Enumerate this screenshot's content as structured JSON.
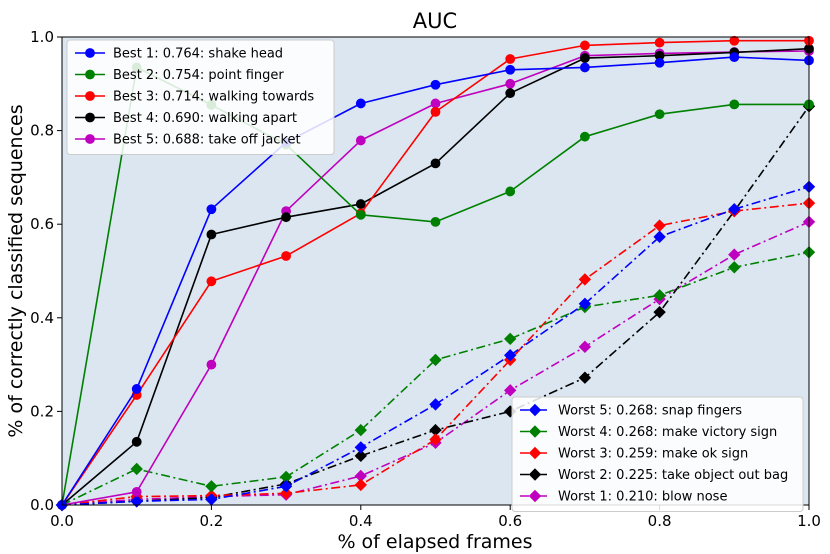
{
  "chart_data": {
    "type": "line",
    "title": "AUC",
    "xlabel": "% of elapsed frames",
    "ylabel": "% of correctly classified sequences",
    "xlim": [
      0.0,
      1.0
    ],
    "ylim": [
      0.0,
      1.0
    ],
    "x": [
      0.0,
      0.1,
      0.2,
      0.3,
      0.4,
      0.5,
      0.6,
      0.7,
      0.8,
      0.9,
      1.0
    ],
    "xticks": [
      "0.0",
      "0.2",
      "0.4",
      "0.6",
      "0.8",
      "1.0"
    ],
    "yticks": [
      "0.0",
      "0.2",
      "0.4",
      "0.6",
      "0.8",
      "1.0"
    ],
    "background": "#dbe6f1",
    "grid": false,
    "legends": [
      {
        "placement": "top-left",
        "group": "best"
      },
      {
        "placement": "bottom-right",
        "group": "worst"
      }
    ],
    "series": [
      {
        "name": "Best 1: 0.764: shake head",
        "group": "best",
        "color": "#0000ff",
        "linestyle": "solid",
        "marker": "circle",
        "values": [
          0.0,
          0.248,
          0.632,
          0.775,
          0.858,
          0.898,
          0.93,
          0.935,
          0.945,
          0.957,
          0.95
        ]
      },
      {
        "name": "Best 2: 0.754: point finger",
        "group": "best",
        "color": "#008000",
        "linestyle": "solid",
        "marker": "circle",
        "values": [
          0.0,
          0.935,
          0.855,
          0.77,
          0.62,
          0.605,
          0.67,
          0.787,
          0.835,
          0.856,
          0.856
        ]
      },
      {
        "name": "Best 3: 0.714: walking towards",
        "group": "best",
        "color": "#ff0000",
        "linestyle": "solid",
        "marker": "circle",
        "values": [
          0.0,
          0.235,
          0.478,
          0.532,
          0.623,
          0.84,
          0.953,
          0.982,
          0.988,
          0.992,
          0.992
        ]
      },
      {
        "name": "Best 4: 0.690: walking apart",
        "group": "best",
        "color": "#000000",
        "linestyle": "solid",
        "marker": "circle",
        "values": [
          0.0,
          0.135,
          0.578,
          0.615,
          0.643,
          0.73,
          0.88,
          0.955,
          0.96,
          0.967,
          0.975
        ]
      },
      {
        "name": "Best 5: 0.688: take off jacket",
        "group": "best",
        "color": "#bf00bf",
        "linestyle": "solid",
        "marker": "circle",
        "values": [
          0.0,
          0.028,
          0.3,
          0.628,
          0.779,
          0.858,
          0.9,
          0.96,
          0.965,
          0.968,
          0.97
        ]
      },
      {
        "name": "Worst 5: 0.268: snap fingers",
        "group": "worst",
        "color": "#0000ff",
        "linestyle": "dashdot",
        "marker": "diamond",
        "values": [
          0.0,
          0.008,
          0.012,
          0.04,
          0.123,
          0.215,
          0.32,
          0.43,
          0.573,
          0.632,
          0.68
        ]
      },
      {
        "name": "Worst 4: 0.268: make victory sign",
        "group": "worst",
        "color": "#008000",
        "linestyle": "dashdot",
        "marker": "diamond",
        "values": [
          0.0,
          0.077,
          0.04,
          0.06,
          0.16,
          0.31,
          0.355,
          0.423,
          0.448,
          0.508,
          0.54
        ]
      },
      {
        "name": "Worst 3: 0.259: make ok sign",
        "group": "worst",
        "color": "#ff0000",
        "linestyle": "dashdot",
        "marker": "diamond",
        "values": [
          0.0,
          0.018,
          0.02,
          0.025,
          0.043,
          0.14,
          0.31,
          0.482,
          0.597,
          0.628,
          0.645
        ]
      },
      {
        "name": "Worst 2: 0.225: take object out bag",
        "group": "worst",
        "color": "#000000",
        "linestyle": "dashdot",
        "marker": "diamond",
        "values": [
          0.0,
          0.008,
          0.016,
          0.045,
          0.105,
          0.16,
          0.2,
          0.272,
          0.412,
          0.628,
          0.852
        ]
      },
      {
        "name": "Worst 1: 0.210: blow nose",
        "group": "worst",
        "color": "#bf00bf",
        "linestyle": "dashdot",
        "marker": "diamond",
        "values": [
          0.0,
          0.012,
          0.018,
          0.022,
          0.062,
          0.133,
          0.245,
          0.338,
          0.44,
          0.535,
          0.605
        ]
      }
    ]
  }
}
